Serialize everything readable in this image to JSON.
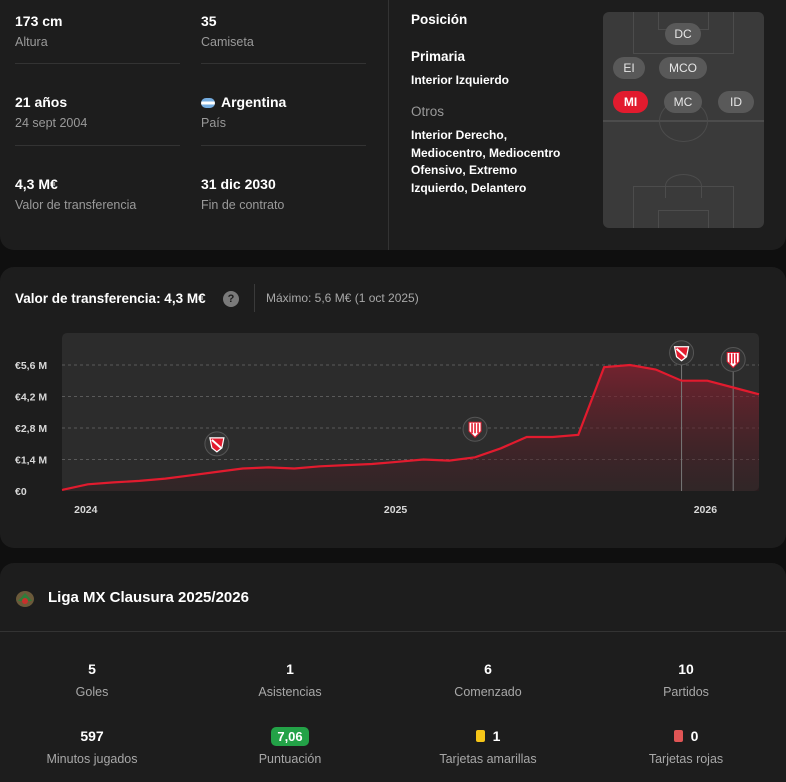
{
  "player_info": {
    "height": {
      "value": "173 cm",
      "label": "Altura"
    },
    "shirt": {
      "value": "35",
      "label": "Camiseta"
    },
    "age": {
      "value": "21 años",
      "label": "24 sept 2004"
    },
    "country": {
      "value": "Argentina",
      "label": "País",
      "flag_icon": "argentina-flag-icon"
    },
    "transfer_value": {
      "value": "4,3 M€",
      "label": "Valor de transferencia"
    },
    "contract_end": {
      "value": "31 dic 2030",
      "label": "Fin de contrato"
    }
  },
  "position": {
    "title": "Posición",
    "primary_label": "Primaria",
    "primary_value": "Interior Izquierdo",
    "others_label": "Otros",
    "others_value": "Interior Derecho, Mediocentro, Mediocentro Ofensivo, Extremo Izquierdo, Delantero",
    "pitch_chips": [
      {
        "code": "DC",
        "active": false
      },
      {
        "code": "EI",
        "active": false
      },
      {
        "code": "MCO",
        "active": false
      },
      {
        "code": "MI",
        "active": true
      },
      {
        "code": "MC",
        "active": false
      },
      {
        "code": "ID",
        "active": false
      }
    ],
    "colors": {
      "active": "#e21b2e",
      "chip": "#595959",
      "pitch": "#3a3a3a"
    }
  },
  "transfer_chart": {
    "title": "Valor de transferencia: 4,3 M€",
    "help_icon": "question-icon",
    "max_text": "Máximo: 5,6 M€ (1 oct 2025)"
  },
  "chart_data": {
    "type": "area",
    "title": "Valor de transferencia: 4,3 M€",
    "xlabel": "",
    "ylabel": "",
    "x_ticks": [
      "2024",
      "2025",
      "2026"
    ],
    "y_ticks": [
      "€0",
      "€1,4 M",
      "€2,8 M",
      "€4,2 M",
      "€5,6 M"
    ],
    "ylim": [
      0,
      6.3
    ],
    "unit": "M€",
    "grid": true,
    "line_color": "#e21b2e",
    "series": [
      {
        "points": [
          [
            "2023-12",
            0.05
          ],
          [
            "2024-01",
            0.3
          ],
          [
            "2024-02",
            0.38
          ],
          [
            "2024-03",
            0.45
          ],
          [
            "2024-04",
            0.55
          ],
          [
            "2024-05",
            0.7
          ],
          [
            "2024-06",
            0.85
          ],
          [
            "2024-07",
            1.0
          ],
          [
            "2024-08",
            1.05
          ],
          [
            "2024-09",
            1.0
          ],
          [
            "2024-10",
            1.1
          ],
          [
            "2024-11",
            1.15
          ],
          [
            "2024-12",
            1.2
          ],
          [
            "2025-01",
            1.3
          ],
          [
            "2025-02",
            1.4
          ],
          [
            "2025-03",
            1.35
          ],
          [
            "2025-04",
            1.5
          ],
          [
            "2025-05",
            1.9
          ],
          [
            "2025-06",
            2.4
          ],
          [
            "2025-07",
            2.4
          ],
          [
            "2025-08",
            2.5
          ],
          [
            "2025-09",
            5.5
          ],
          [
            "2025-10",
            5.6
          ],
          [
            "2025-11",
            5.4
          ],
          [
            "2025-12",
            4.9
          ],
          [
            "2026-01",
            4.9
          ],
          [
            "2026-02",
            4.6
          ],
          [
            "2026-03",
            4.3
          ]
        ]
      }
    ],
    "club_markers": [
      {
        "x": "2024-06",
        "icon": "independiente-crest-icon"
      },
      {
        "x": "2025-04",
        "icon": "necaxa-crest-icon"
      },
      {
        "x": "2025-12",
        "icon": "independiente-crest-icon"
      },
      {
        "x": "2026-02",
        "icon": "necaxa-crest-icon"
      }
    ]
  },
  "season": {
    "league_icon": "liga-mx-icon",
    "league_name": "Liga MX Clausura 2025/2026",
    "stats": [
      {
        "value": "5",
        "label": "Goles"
      },
      {
        "value": "1",
        "label": "Asistencias"
      },
      {
        "value": "6",
        "label": "Comenzado"
      },
      {
        "value": "10",
        "label": "Partidos"
      },
      {
        "value": "597",
        "label": "Minutos jugados"
      },
      {
        "value": "7,06",
        "label": "Puntuación",
        "color": "#23a247"
      },
      {
        "value": "1",
        "label": "Tarjetas amarillas",
        "color": "#f5c518",
        "icon": "yellow-card-icon"
      },
      {
        "value": "0",
        "label": "Tarjetas rojas",
        "color": "#e05555",
        "icon": "red-card-icon"
      }
    ]
  }
}
